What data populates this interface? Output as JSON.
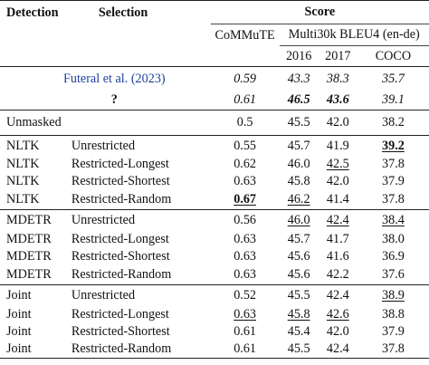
{
  "header": {
    "detection": "Detection",
    "selection": "Selection",
    "score": "Score",
    "commute": "CoMMuTE",
    "multi30k": "Multi30k BLEU4 (en-de)",
    "y2016": "2016",
    "y2017": "2017",
    "coco": "COCO"
  },
  "baselines": [
    {
      "name": "Futeral et al. (2023)",
      "commute": "0.59",
      "y2016": "43.3",
      "y2017": "38.3",
      "coco": "35.7"
    },
    {
      "name": "?",
      "commute": "0.61",
      "y2016": "46.5",
      "y2017": "43.6",
      "coco": "39.1"
    }
  ],
  "unmasked": {
    "name": "Unmasked",
    "commute": "0.5",
    "y2016": "45.5",
    "y2017": "42.0",
    "coco": "38.2"
  },
  "nltk": [
    {
      "det": "NLTK",
      "sel": "Unrestricted",
      "commute": "0.55",
      "y2016": "45.7",
      "y2017": "41.9",
      "coco": "39.2"
    },
    {
      "det": "NLTK",
      "sel": "Restricted-Longest",
      "commute": "0.62",
      "y2016": "46.0",
      "y2017": "42.5",
      "coco": "37.8"
    },
    {
      "det": "NLTK",
      "sel": "Restricted-Shortest",
      "commute": "0.63",
      "y2016": "45.8",
      "y2017": "42.0",
      "coco": "37.9"
    },
    {
      "det": "NLTK",
      "sel": "Restricted-Random",
      "commute": "0.67",
      "y2016": "46.2",
      "y2017": "41.4",
      "coco": "37.8"
    }
  ],
  "mdetr": [
    {
      "det": "MDETR",
      "sel": "Unrestricted",
      "commute": "0.56",
      "y2016": "46.0",
      "y2017": "42.4",
      "coco": "38.4"
    },
    {
      "det": "MDETR",
      "sel": "Restricted-Longest",
      "commute": "0.63",
      "y2016": "45.7",
      "y2017": "41.7",
      "coco": "38.0"
    },
    {
      "det": "MDETR",
      "sel": "Restricted-Shortest",
      "commute": "0.63",
      "y2016": "45.6",
      "y2017": "41.6",
      "coco": "36.9"
    },
    {
      "det": "MDETR",
      "sel": "Restricted-Random",
      "commute": "0.63",
      "y2016": "45.6",
      "y2017": "42.2",
      "coco": "37.6"
    }
  ],
  "joint": [
    {
      "det": "Joint",
      "sel": "Unrestricted",
      "commute": "0.52",
      "y2016": "45.5",
      "y2017": "42.4",
      "coco": "38.9"
    },
    {
      "det": "Joint",
      "sel": "Restricted-Longest",
      "commute": "0.63",
      "y2016": "45.8",
      "y2017": "42.6",
      "coco": "38.8"
    },
    {
      "det": "Joint",
      "sel": "Restricted-Shortest",
      "commute": "0.61",
      "y2016": "45.4",
      "y2017": "42.0",
      "coco": "37.9"
    },
    {
      "det": "Joint",
      "sel": "Restricted-Random",
      "commute": "0.61",
      "y2016": "45.5",
      "y2017": "42.4",
      "coco": "37.8"
    }
  ]
}
